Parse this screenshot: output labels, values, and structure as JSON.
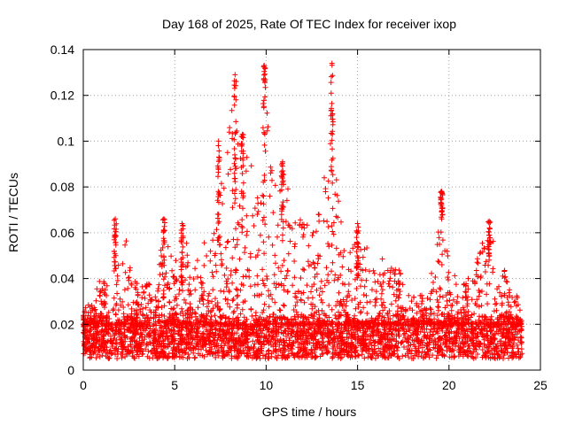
{
  "chart_data": {
    "type": "scatter",
    "title": "Day 168 of 2025, Rate Of TEC Index for receiver ixop",
    "xlabel": "GPS time / hours",
    "ylabel": "ROTI / TECUs",
    "xlim": [
      0,
      25
    ],
    "ylim": [
      0,
      0.14
    ],
    "xticks": [
      0,
      5,
      10,
      15,
      20,
      25
    ],
    "xtick_labels": [
      "0",
      "5",
      "10",
      "15",
      "20",
      "25"
    ],
    "yticks": [
      0,
      0.02,
      0.04,
      0.06,
      0.08,
      0.1,
      0.12,
      0.14
    ],
    "ytick_labels": [
      "0",
      "0.02",
      "0.04",
      "0.06",
      "0.08",
      "0.1",
      "0.12",
      "0.14"
    ],
    "grid": true,
    "marker": "+",
    "color": "#ff0000",
    "data_range_x": [
      0,
      24
    ],
    "baseline_band": [
      0.005,
      0.02
    ],
    "envelope": [
      {
        "x": 0.0,
        "y": 0.027
      },
      {
        "x": 0.5,
        "y": 0.03
      },
      {
        "x": 1.0,
        "y": 0.044
      },
      {
        "x": 1.5,
        "y": 0.035
      },
      {
        "x": 1.75,
        "y": 0.066
      },
      {
        "x": 2.0,
        "y": 0.04
      },
      {
        "x": 2.3,
        "y": 0.06
      },
      {
        "x": 3.0,
        "y": 0.036
      },
      {
        "x": 4.0,
        "y": 0.04
      },
      {
        "x": 4.4,
        "y": 0.066
      },
      {
        "x": 5.0,
        "y": 0.045
      },
      {
        "x": 5.4,
        "y": 0.064
      },
      {
        "x": 6.0,
        "y": 0.045
      },
      {
        "x": 6.5,
        "y": 0.056
      },
      {
        "x": 7.0,
        "y": 0.06
      },
      {
        "x": 7.3,
        "y": 0.1
      },
      {
        "x": 7.8,
        "y": 0.094
      },
      {
        "x": 8.3,
        "y": 0.128
      },
      {
        "x": 8.8,
        "y": 0.096
      },
      {
        "x": 9.2,
        "y": 0.09
      },
      {
        "x": 9.5,
        "y": 0.075
      },
      {
        "x": 9.9,
        "y": 0.133
      },
      {
        "x": 10.4,
        "y": 0.088
      },
      {
        "x": 10.9,
        "y": 0.09
      },
      {
        "x": 11.5,
        "y": 0.08
      },
      {
        "x": 12.0,
        "y": 0.07
      },
      {
        "x": 12.5,
        "y": 0.064
      },
      {
        "x": 13.0,
        "y": 0.07
      },
      {
        "x": 13.6,
        "y": 0.134
      },
      {
        "x": 14.0,
        "y": 0.07
      },
      {
        "x": 14.5,
        "y": 0.054
      },
      {
        "x": 15.0,
        "y": 0.064
      },
      {
        "x": 15.5,
        "y": 0.055
      },
      {
        "x": 16.0,
        "y": 0.05
      },
      {
        "x": 16.5,
        "y": 0.048
      },
      {
        "x": 17.0,
        "y": 0.05
      },
      {
        "x": 17.5,
        "y": 0.04
      },
      {
        "x": 18.0,
        "y": 0.032
      },
      {
        "x": 18.5,
        "y": 0.033
      },
      {
        "x": 19.0,
        "y": 0.04
      },
      {
        "x": 19.6,
        "y": 0.078
      },
      {
        "x": 20.0,
        "y": 0.045
      },
      {
        "x": 20.5,
        "y": 0.04
      },
      {
        "x": 21.0,
        "y": 0.042
      },
      {
        "x": 21.5,
        "y": 0.05
      },
      {
        "x": 22.2,
        "y": 0.065
      },
      {
        "x": 22.8,
        "y": 0.05
      },
      {
        "x": 23.3,
        "y": 0.038
      },
      {
        "x": 23.7,
        "y": 0.037
      },
      {
        "x": 24.0,
        "y": 0.02
      }
    ],
    "spikes": [
      {
        "x": 1.75,
        "ymin": 0.04,
        "ymax": 0.066
      },
      {
        "x": 4.4,
        "ymin": 0.03,
        "ymax": 0.066
      },
      {
        "x": 5.4,
        "ymin": 0.035,
        "ymax": 0.064
      },
      {
        "x": 7.4,
        "ymin": 0.05,
        "ymax": 0.1
      },
      {
        "x": 8.3,
        "ymin": 0.07,
        "ymax": 0.129
      },
      {
        "x": 8.7,
        "ymin": 0.06,
        "ymax": 0.103
      },
      {
        "x": 9.9,
        "ymin": 0.07,
        "ymax": 0.133
      },
      {
        "x": 10.9,
        "ymin": 0.05,
        "ymax": 0.091
      },
      {
        "x": 13.6,
        "ymin": 0.07,
        "ymax": 0.134
      },
      {
        "x": 15.0,
        "ymin": 0.04,
        "ymax": 0.064
      },
      {
        "x": 19.6,
        "ymin": 0.065,
        "ymax": 0.078
      },
      {
        "x": 22.2,
        "ymin": 0.045,
        "ymax": 0.065
      }
    ]
  }
}
